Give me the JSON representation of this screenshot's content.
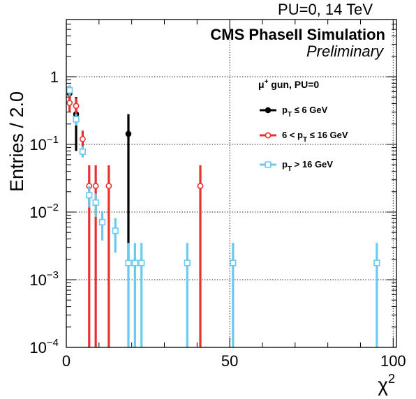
{
  "chart_data": {
    "type": "scatter",
    "top_label": "PU=0, 14 TeV",
    "experiment": "CMS PhaseII Simulation",
    "status": "Preliminary",
    "xlabel": "χ",
    "xlabel_sup": "2",
    "ylabel": "Entries / 2.0",
    "xlim": [
      0,
      101
    ],
    "ylim": [
      0.0001,
      7
    ],
    "yscale": "log",
    "grid": true,
    "x_ticks": [
      {
        "value": 0,
        "label": "0"
      },
      {
        "value": 50,
        "label": "50"
      },
      {
        "value": 100,
        "label": "100"
      }
    ],
    "y_ticks": [
      {
        "value": 1,
        "base": "1",
        "exp": ""
      },
      {
        "value": 0.1,
        "base": "10",
        "exp": "−1"
      },
      {
        "value": 0.01,
        "base": "10",
        "exp": "−2"
      },
      {
        "value": 0.001,
        "base": "10",
        "exp": "−3"
      },
      {
        "value": 0.0001,
        "base": "10",
        "exp": "−4"
      }
    ],
    "legend": {
      "placement": "top-right",
      "header": "μ",
      "header_sup": "+",
      "header_tail": " gun, PU=0"
    },
    "series": [
      {
        "name_parts": [
          "p",
          "T",
          " ≤ 6 GeV"
        ],
        "legend_text": "p_T ≤ 6 GeV",
        "color": "#000000",
        "marker": "filled-circle",
        "points": [
          {
            "x": 1,
            "y": 0.57,
            "lo": 0.42,
            "hi": 0.74
          },
          {
            "x": 3,
            "y": 0.28,
            "lo": 0.08,
            "hi": 0.5
          },
          {
            "x": 19,
            "y": 0.143,
            "lo": 0.0017,
            "hi": 0.28
          }
        ]
      },
      {
        "name_parts": [
          "6 < p",
          "T",
          " ≤ 16 GeV"
        ],
        "legend_text": "6 < p_T ≤ 16 GeV",
        "color": "#e8302e",
        "marker": "open-circle",
        "points": [
          {
            "x": 1,
            "y": 0.41,
            "lo": 0.3,
            "hi": 0.55
          },
          {
            "x": 3,
            "y": 0.37,
            "lo": 0.22,
            "hi": 0.48
          },
          {
            "x": 5,
            "y": 0.12,
            "lo": 0.085,
            "hi": 0.16
          },
          {
            "x": 7,
            "y": 0.0243,
            "lo": 0.0001,
            "hi": 0.049
          },
          {
            "x": 9,
            "y": 0.0243,
            "lo": 0.0001,
            "hi": 0.049
          },
          {
            "x": 13,
            "y": 0.0243,
            "lo": 0.0001,
            "hi": 0.049
          },
          {
            "x": 41,
            "y": 0.0243,
            "lo": 0.0001,
            "hi": 0.049
          }
        ]
      },
      {
        "name_parts": [
          "p",
          "T",
          " > 16 GeV"
        ],
        "legend_text": "p_T > 16 GeV",
        "color": "#6cc8f0",
        "marker": "open-square",
        "points": [
          {
            "x": 1,
            "y": 0.63,
            "lo": 0.52,
            "hi": 0.74
          },
          {
            "x": 3,
            "y": 0.235,
            "lo": 0.19,
            "hi": 0.28
          },
          {
            "x": 5,
            "y": 0.078,
            "lo": 0.064,
            "hi": 0.094
          },
          {
            "x": 7,
            "y": 0.0177,
            "lo": 0.0117,
            "hi": 0.024
          },
          {
            "x": 9,
            "y": 0.0138,
            "lo": 0.0085,
            "hi": 0.0188
          },
          {
            "x": 11,
            "y": 0.0071,
            "lo": 0.0038,
            "hi": 0.0103
          },
          {
            "x": 15,
            "y": 0.0053,
            "lo": 0.0025,
            "hi": 0.0081
          },
          {
            "x": 19,
            "y": 0.00177,
            "lo": 0.0001,
            "hi": 0.0035
          },
          {
            "x": 21,
            "y": 0.00177,
            "lo": 0.0001,
            "hi": 0.0035
          },
          {
            "x": 23,
            "y": 0.00177,
            "lo": 0.0001,
            "hi": 0.0035
          },
          {
            "x": 37,
            "y": 0.00177,
            "lo": 0.0001,
            "hi": 0.0035
          },
          {
            "x": 51,
            "y": 0.00177,
            "lo": 0.0001,
            "hi": 0.0035
          },
          {
            "x": 95,
            "y": 0.00177,
            "lo": 0.0001,
            "hi": 0.0035
          }
        ]
      }
    ]
  }
}
